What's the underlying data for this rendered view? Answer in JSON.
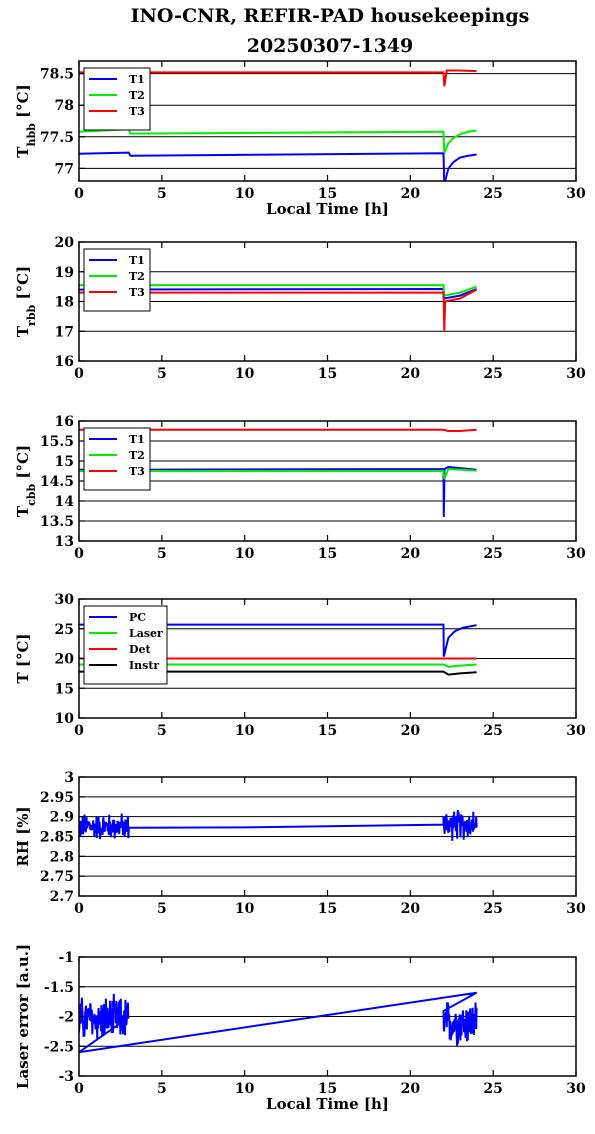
{
  "title_line1": "INO-CNR, REFIR-PAD housekeepings",
  "title_line2": "20250307-1349",
  "colors": {
    "blue": "#0000ff",
    "green": "#00ee00",
    "red": "#ff0000",
    "black": "#000000"
  },
  "chart_data": [
    {
      "type": "line",
      "xlabel": "Local Time [h]",
      "ylabel": "T_hbb [°C]",
      "xlim": [
        0,
        30
      ],
      "ylim": [
        76.8,
        78.7
      ],
      "xticks": [
        0,
        5,
        10,
        15,
        20,
        25,
        30
      ],
      "yticks": [
        77,
        77.5,
        78,
        78.5
      ],
      "ytick_labels": [
        "77",
        "77.5",
        "78",
        "78.5"
      ],
      "grid": "horizontal",
      "legend": "top-left",
      "series": [
        {
          "name": "T1",
          "color": "#0000ff",
          "x": [
            0,
            3,
            3.1,
            22,
            22.05,
            22.3,
            22.6,
            23,
            23.5,
            24
          ],
          "y": [
            77.23,
            77.25,
            77.2,
            77.24,
            76.75,
            77.0,
            77.1,
            77.17,
            77.2,
            77.22
          ]
        },
        {
          "name": "T2",
          "color": "#00ee00",
          "x": [
            0,
            3,
            3.1,
            22,
            22.05,
            22.3,
            22.6,
            23,
            23.5,
            24
          ],
          "y": [
            77.58,
            77.62,
            77.55,
            77.58,
            77.25,
            77.4,
            77.48,
            77.54,
            77.58,
            77.6
          ]
        },
        {
          "name": "T3",
          "color": "#ff0000",
          "x": [
            0,
            22,
            22.05,
            22.2,
            23,
            24
          ],
          "y": [
            78.52,
            78.52,
            78.3,
            78.55,
            78.55,
            78.54
          ]
        }
      ]
    },
    {
      "type": "line",
      "xlabel": "",
      "ylabel": "T_rbb [°C]",
      "xlim": [
        0,
        30
      ],
      "ylim": [
        16,
        20
      ],
      "xticks": [
        0,
        5,
        10,
        15,
        20,
        25,
        30
      ],
      "yticks": [
        16,
        17,
        18,
        19,
        20
      ],
      "ytick_labels": [
        "16",
        "17",
        "18",
        "19",
        "20"
      ],
      "grid": "horizontal",
      "legend": "top-left",
      "series": [
        {
          "name": "T1",
          "color": "#0000ff",
          "x": [
            0,
            22,
            22.05,
            23,
            24
          ],
          "y": [
            18.4,
            18.42,
            18.1,
            18.2,
            18.42
          ]
        },
        {
          "name": "T2",
          "color": "#00ee00",
          "x": [
            0,
            22,
            22.05,
            23,
            24
          ],
          "y": [
            18.55,
            18.55,
            18.2,
            18.3,
            18.5
          ]
        },
        {
          "name": "T3",
          "color": "#ff0000",
          "x": [
            0,
            22,
            22.05,
            22.1,
            23,
            24
          ],
          "y": [
            18.3,
            18.3,
            17.0,
            18.0,
            18.1,
            18.4
          ]
        }
      ]
    },
    {
      "type": "line",
      "xlabel": "",
      "ylabel": "T_cbb [°C]",
      "xlim": [
        0,
        30
      ],
      "ylim": [
        13,
        16
      ],
      "xticks": [
        0,
        5,
        10,
        15,
        20,
        25,
        30
      ],
      "yticks": [
        13,
        13.5,
        14,
        14.5,
        15,
        15.5,
        16
      ],
      "ytick_labels": [
        "13",
        "13.5",
        "14",
        "14.5",
        "15",
        "15.5",
        "16"
      ],
      "grid": "horizontal",
      "legend": "top-left",
      "series": [
        {
          "name": "T1",
          "color": "#0000ff",
          "x": [
            0,
            22,
            22.02,
            22.06,
            22.3,
            24
          ],
          "y": [
            14.78,
            14.8,
            13.6,
            14.8,
            14.85,
            14.78
          ]
        },
        {
          "name": "T2",
          "color": "#00ee00",
          "x": [
            0,
            22,
            22.05,
            22.3,
            24
          ],
          "y": [
            14.75,
            14.75,
            14.55,
            14.8,
            14.76
          ]
        },
        {
          "name": "T3",
          "color": "#ff0000",
          "x": [
            0,
            22,
            22.3,
            23,
            24
          ],
          "y": [
            15.78,
            15.78,
            15.75,
            15.75,
            15.78
          ]
        }
      ]
    },
    {
      "type": "line",
      "xlabel": "",
      "ylabel": "T [°C]",
      "xlim": [
        0,
        30
      ],
      "ylim": [
        10,
        30
      ],
      "xticks": [
        0,
        5,
        10,
        15,
        20,
        25,
        30
      ],
      "yticks": [
        10,
        15,
        20,
        25,
        30
      ],
      "ytick_labels": [
        "10",
        "15",
        "20",
        "25",
        "30"
      ],
      "grid": "horizontal",
      "legend": "top-left",
      "series": [
        {
          "name": "PC",
          "color": "#0000ff",
          "x": [
            0,
            22,
            22.02,
            22.3,
            22.7,
            23.2,
            24
          ],
          "y": [
            25.7,
            25.7,
            20.3,
            23.5,
            24.6,
            25.2,
            25.6
          ]
        },
        {
          "name": "Laser",
          "color": "#00ee00",
          "x": [
            0,
            22,
            22.3,
            23,
            24
          ],
          "y": [
            19.0,
            19.0,
            18.6,
            18.8,
            19.0
          ]
        },
        {
          "name": "Det",
          "color": "#ff0000",
          "x": [
            0,
            24
          ],
          "y": [
            20.0,
            20.0
          ]
        },
        {
          "name": "Instr",
          "color": "#000000",
          "x": [
            0,
            22,
            22.3,
            23,
            24
          ],
          "y": [
            17.8,
            17.8,
            17.3,
            17.5,
            17.7
          ]
        }
      ]
    },
    {
      "type": "line",
      "xlabel": "",
      "ylabel": "RH [%]",
      "xlim": [
        0,
        30
      ],
      "ylim": [
        2.7,
        3.0
      ],
      "xticks": [
        0,
        5,
        10,
        15,
        20,
        25,
        30
      ],
      "yticks": [
        2.7,
        2.75,
        2.8,
        2.85,
        2.9,
        2.95,
        3
      ],
      "ytick_labels": [
        "2.7",
        "2.75",
        "2.8",
        "2.85",
        "2.9",
        "2.95",
        "3"
      ],
      "grid": "horizontal",
      "legend": "none",
      "series": [
        {
          "color": "#0000ff",
          "noise_segments": [
            [
              0,
              3,
              2.875,
              0.04
            ],
            [
              22,
              24,
              2.88,
              0.045
            ]
          ],
          "x": [
            3,
            10,
            15,
            22
          ],
          "y": [
            2.872,
            2.873,
            2.876,
            2.88
          ]
        }
      ]
    },
    {
      "type": "line",
      "xlabel": "Local Time [h]",
      "ylabel": "Laser error [a.u.]",
      "xlim": [
        0,
        30
      ],
      "ylim": [
        -3,
        -1
      ],
      "xticks": [
        0,
        5,
        10,
        15,
        20,
        25,
        30
      ],
      "yticks": [
        -3,
        -2.5,
        -2,
        -1.5,
        -1
      ],
      "ytick_labels": [
        "-3",
        "-2.5",
        "-2",
        "-1.5",
        "-1"
      ],
      "grid": "horizontal",
      "legend": "none",
      "series": [
        {
          "color": "#0000ff",
          "noise_segments": [
            [
              0,
              3,
              -2.05,
              0.45
            ],
            [
              22,
              24,
              -2.1,
              0.45
            ]
          ],
          "x": [
            0,
            24
          ],
          "y": [
            -2.6,
            -1.6
          ]
        }
      ]
    }
  ]
}
